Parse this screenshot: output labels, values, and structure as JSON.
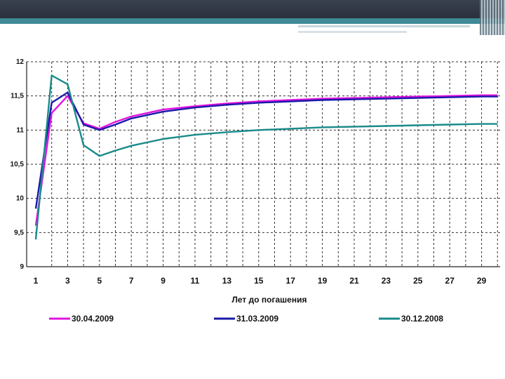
{
  "colors": {
    "header_dark": "#2f3542",
    "header_accent": "#3f8a96",
    "grid": "#333333"
  },
  "chart_data": {
    "type": "line",
    "title": "",
    "xlabel": "Лет до погашения",
    "ylabel": "",
    "xlim": [
      1,
      30
    ],
    "ylim": [
      9,
      12
    ],
    "y_ticks": [
      9,
      9.5,
      10,
      10.5,
      11,
      11.5,
      12
    ],
    "y_tick_labels": [
      "9",
      "9,5",
      "10",
      "10,5",
      "11",
      "11,5",
      "12"
    ],
    "x_ticks": [
      1,
      3,
      5,
      7,
      9,
      11,
      13,
      15,
      17,
      19,
      21,
      23,
      25,
      27,
      29
    ],
    "x_tick_labels": [
      "1",
      "3",
      "5",
      "7",
      "9",
      "11",
      "13",
      "15",
      "17",
      "19",
      "21",
      "23",
      "25",
      "27",
      "29"
    ],
    "grid": true,
    "legend_position": "bottom",
    "series": [
      {
        "name": "30.04.2009",
        "color": "#e014e0",
        "x": [
          1,
          2,
          3,
          4,
          5,
          6,
          7,
          9,
          11,
          13,
          15,
          17,
          19,
          21,
          23,
          25,
          27,
          29,
          30
        ],
        "y": [
          9.6,
          11.25,
          11.5,
          11.1,
          11.02,
          11.12,
          11.2,
          11.3,
          11.35,
          11.39,
          11.42,
          11.44,
          11.46,
          11.47,
          11.48,
          11.49,
          11.5,
          11.51,
          11.51
        ]
      },
      {
        "name": "31.03.2009",
        "color": "#1a1aa8",
        "x": [
          1,
          2,
          3,
          4,
          5,
          6,
          7,
          9,
          11,
          13,
          15,
          17,
          19,
          21,
          23,
          25,
          27,
          29,
          30
        ],
        "y": [
          9.85,
          11.4,
          11.55,
          11.08,
          11.0,
          11.08,
          11.17,
          11.27,
          11.33,
          11.37,
          11.4,
          11.42,
          11.44,
          11.45,
          11.46,
          11.47,
          11.48,
          11.49,
          11.49
        ]
      },
      {
        "name": "30.12.2008",
        "color": "#1a8a8a",
        "x": [
          1,
          2,
          3,
          4,
          5,
          6,
          7,
          9,
          11,
          13,
          15,
          17,
          19,
          21,
          23,
          25,
          27,
          29,
          30
        ],
        "y": [
          9.4,
          11.8,
          11.67,
          10.78,
          10.62,
          10.7,
          10.77,
          10.87,
          10.93,
          10.97,
          11.0,
          11.02,
          11.04,
          11.05,
          11.06,
          11.07,
          11.08,
          11.09,
          11.09
        ]
      }
    ]
  }
}
